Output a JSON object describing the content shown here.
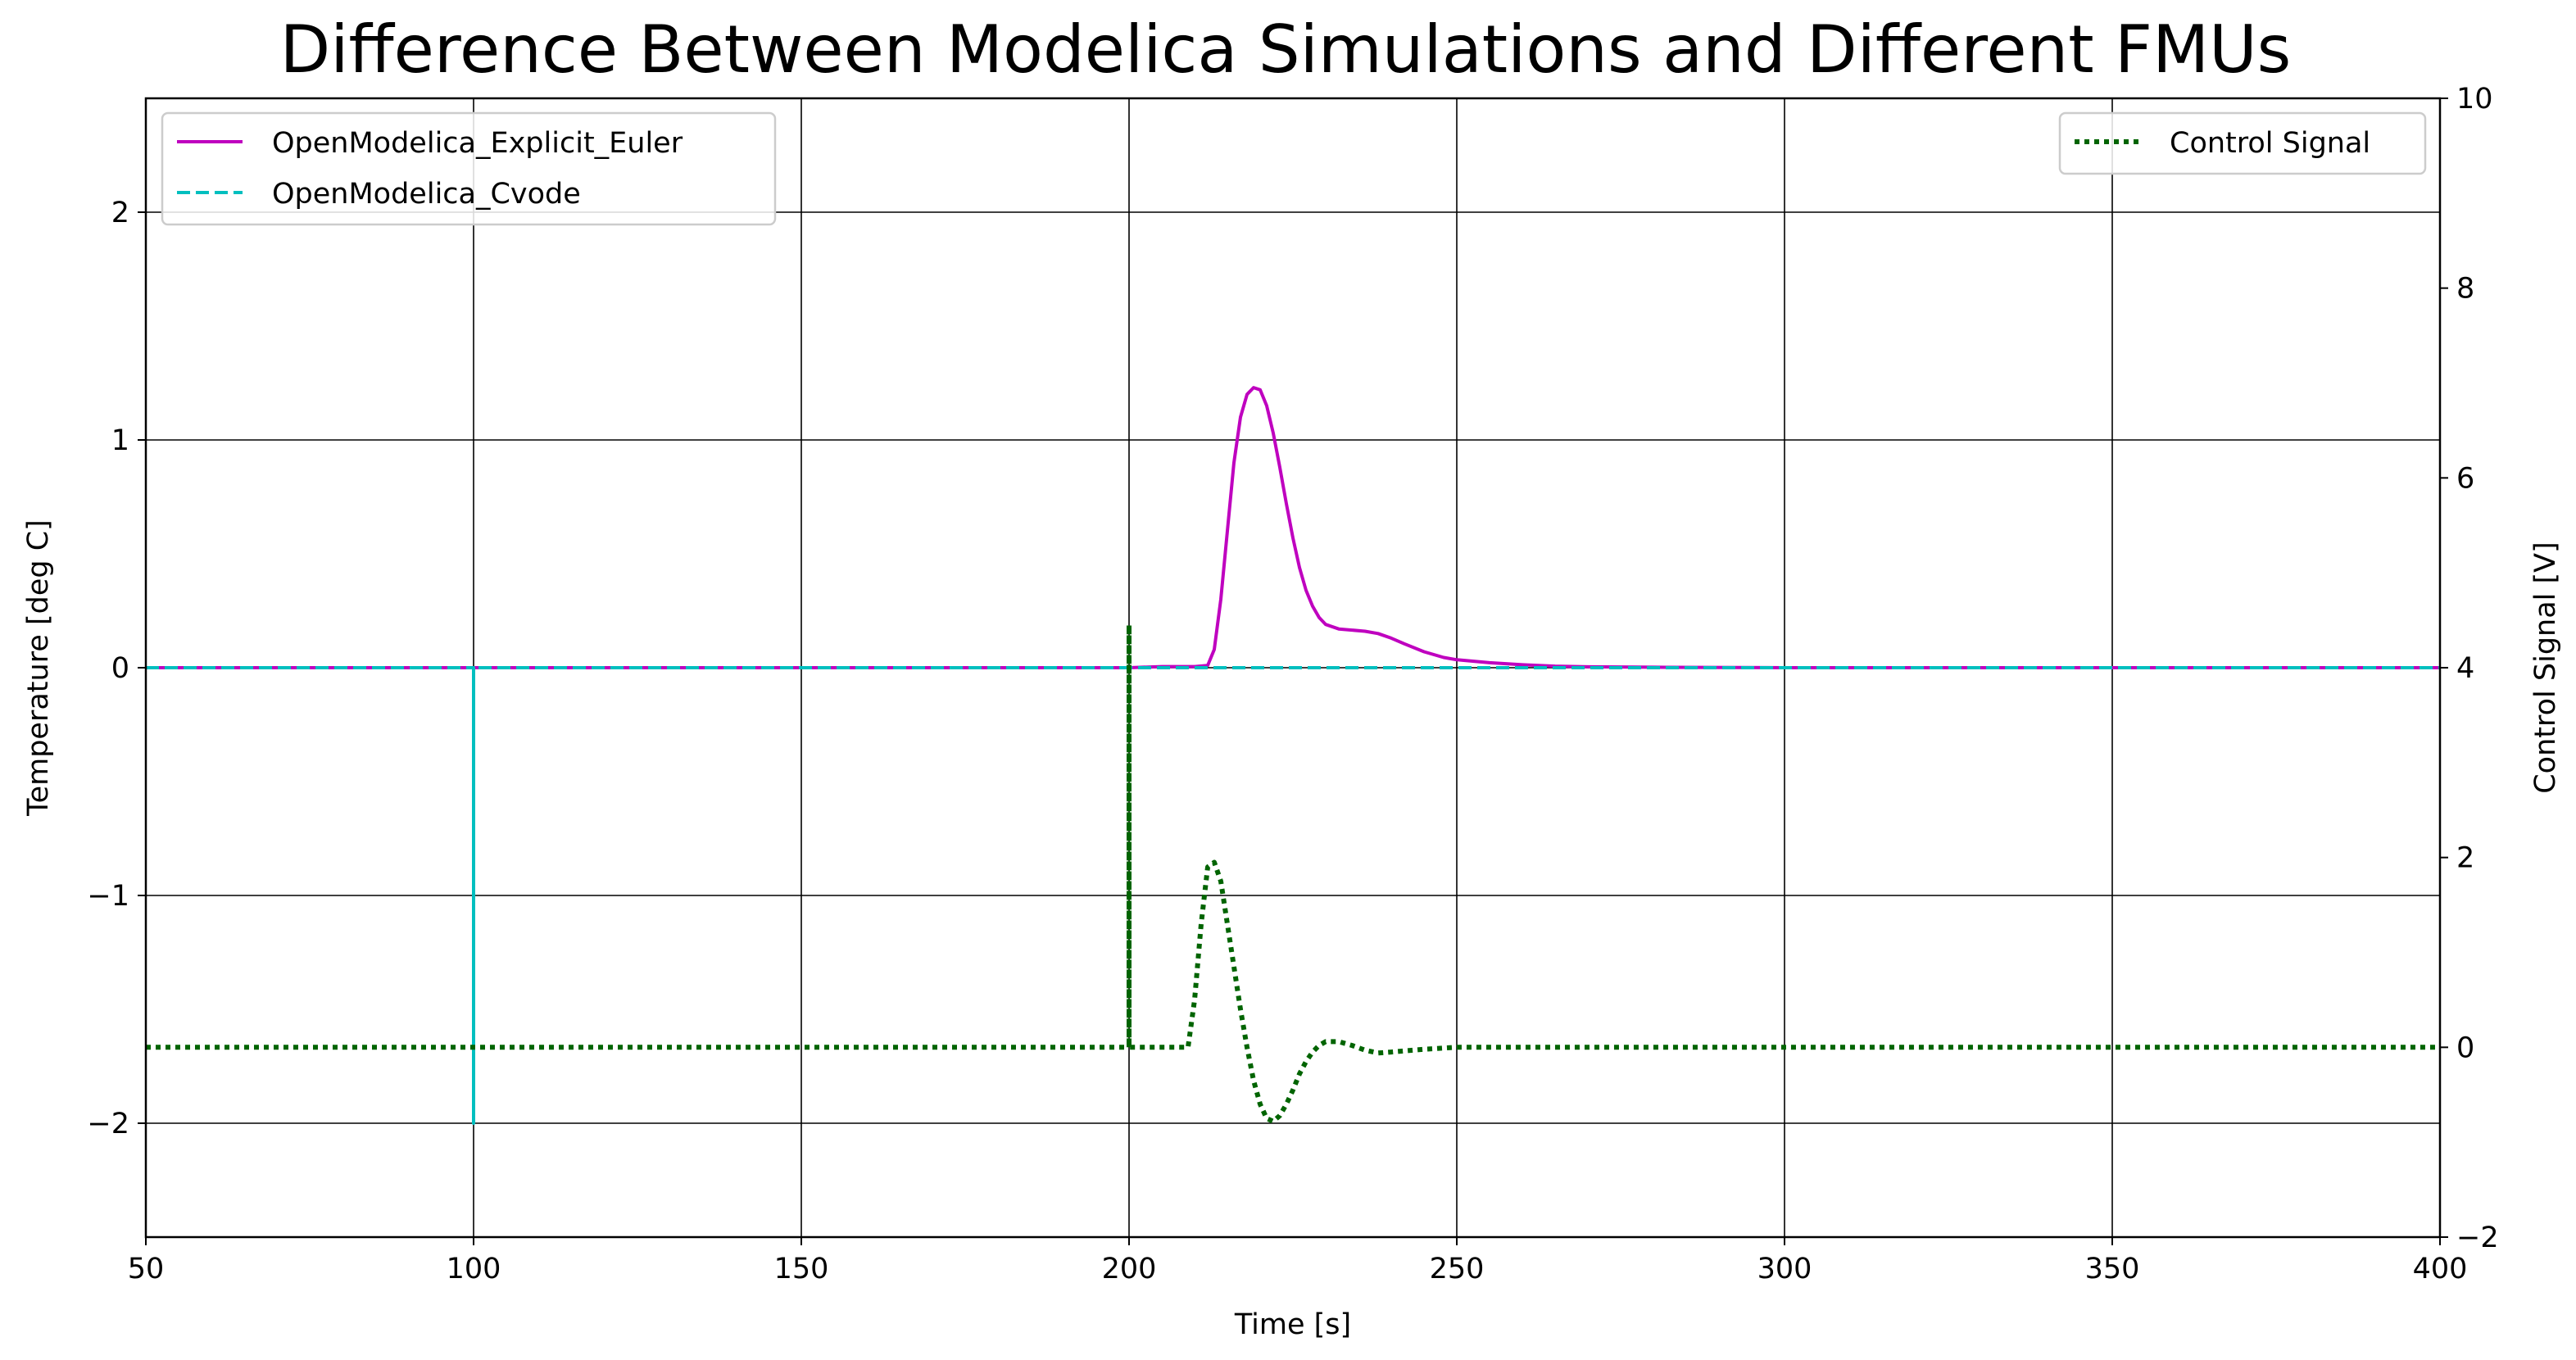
{
  "chart_data": {
    "type": "line",
    "title": "Difference Between Modelica Simulations and Different FMUs",
    "xlabel": "Time [s]",
    "ylabel_left": "Temperature [deg C]",
    "ylabel_right": "Control Signal [V]",
    "xlim": [
      50,
      400
    ],
    "ylim_left": [
      -2.5,
      2.5
    ],
    "ylim_right": [
      -2,
      10
    ],
    "grid": true,
    "x_ticks": [
      "50",
      "100",
      "150",
      "200",
      "250",
      "300",
      "350",
      "400"
    ],
    "y_left_ticks": [
      "−2",
      "−1",
      "0",
      "1",
      "2"
    ],
    "y_right_ticks": [
      "−2",
      "0",
      "2",
      "4",
      "6",
      "8",
      "10"
    ],
    "colors": {
      "euler": "#bf00bf",
      "cvode": "#00bfbf",
      "control": "#006400",
      "ylabel_left": "#0000ff",
      "ylabel_right": "#006400"
    },
    "legend_left": {
      "placement": "upper-left",
      "entries": [
        "OpenModelica_Explicit_Euler",
        "OpenModelica_Cvode"
      ]
    },
    "legend_right": {
      "placement": "upper-right",
      "entries": [
        "Control Signal"
      ]
    },
    "series": [
      {
        "name": "OpenModelica_Explicit_Euler",
        "axis": "left",
        "style": "solid",
        "x": [
          50,
          200,
          205,
          210,
          212,
          213,
          214,
          215,
          216,
          217,
          218,
          219,
          220,
          221,
          222,
          223,
          224,
          225,
          226,
          227,
          228,
          229,
          230,
          232,
          234,
          236,
          238,
          240,
          242,
          245,
          248,
          250,
          255,
          260,
          265,
          270,
          280,
          300,
          400
        ],
        "y": [
          0,
          0,
          0.005,
          0.005,
          0.01,
          0.08,
          0.3,
          0.6,
          0.9,
          1.1,
          1.2,
          1.23,
          1.22,
          1.15,
          1.03,
          0.88,
          0.72,
          0.57,
          0.44,
          0.34,
          0.27,
          0.22,
          0.19,
          0.17,
          0.165,
          0.16,
          0.15,
          0.13,
          0.105,
          0.07,
          0.045,
          0.035,
          0.022,
          0.013,
          0.007,
          0.004,
          0.002,
          0,
          0
        ]
      },
      {
        "name": "OpenModelica_Cvode",
        "axis": "left",
        "style": "dashed",
        "x": [
          50,
          100,
          100,
          100,
          400
        ],
        "y": [
          0,
          0,
          -2,
          0,
          0
        ]
      },
      {
        "name": "Control Signal",
        "axis": "right",
        "style": "dotted",
        "x": [
          50,
          200,
          200,
          200,
          200.6,
          201,
          205,
          209,
          210,
          211,
          212,
          213,
          214,
          215,
          216,
          217,
          218,
          219,
          220,
          221,
          222,
          223,
          224,
          225,
          226,
          227,
          228,
          229,
          230,
          232,
          234,
          236,
          238,
          240,
          245,
          250,
          400
        ],
        "y": [
          0,
          0,
          4.45,
          0,
          0,
          0,
          0,
          0,
          0.5,
          1.3,
          1.9,
          1.95,
          1.75,
          1.3,
          0.85,
          0.4,
          0,
          -0.35,
          -0.6,
          -0.75,
          -0.78,
          -0.72,
          -0.6,
          -0.45,
          -0.28,
          -0.15,
          -0.05,
          0.02,
          0.06,
          0.06,
          0.02,
          -0.03,
          -0.06,
          -0.05,
          -0.02,
          0,
          0
        ]
      }
    ]
  }
}
